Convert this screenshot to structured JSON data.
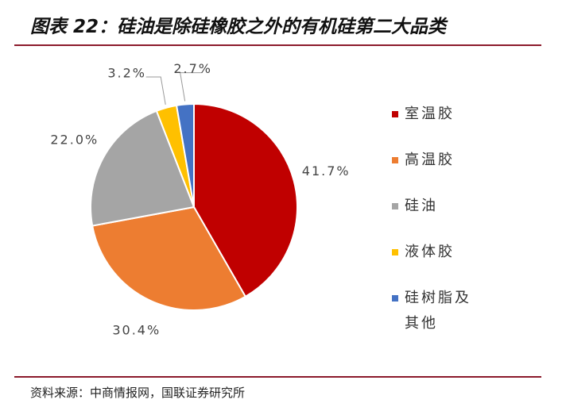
{
  "chart_data": {
    "type": "pie",
    "title": "图表 22：硅油是除硅橡胶之外的有机硅第二大品类",
    "categories": [
      "室温胶",
      "高温胶",
      "硅油",
      "液体胶",
      "硅树脂及其他"
    ],
    "values": [
      41.7,
      30.4,
      22.0,
      3.2,
      2.7
    ],
    "value_labels": [
      "41.7%",
      "30.4%",
      "22.0%",
      "3.2%",
      "2.7%"
    ],
    "colors": [
      "#c00000",
      "#ed7d31",
      "#a5a5a5",
      "#ffc000",
      "#4472c4"
    ],
    "source": "资料来源：中商情报网，国联证券研究所"
  }
}
